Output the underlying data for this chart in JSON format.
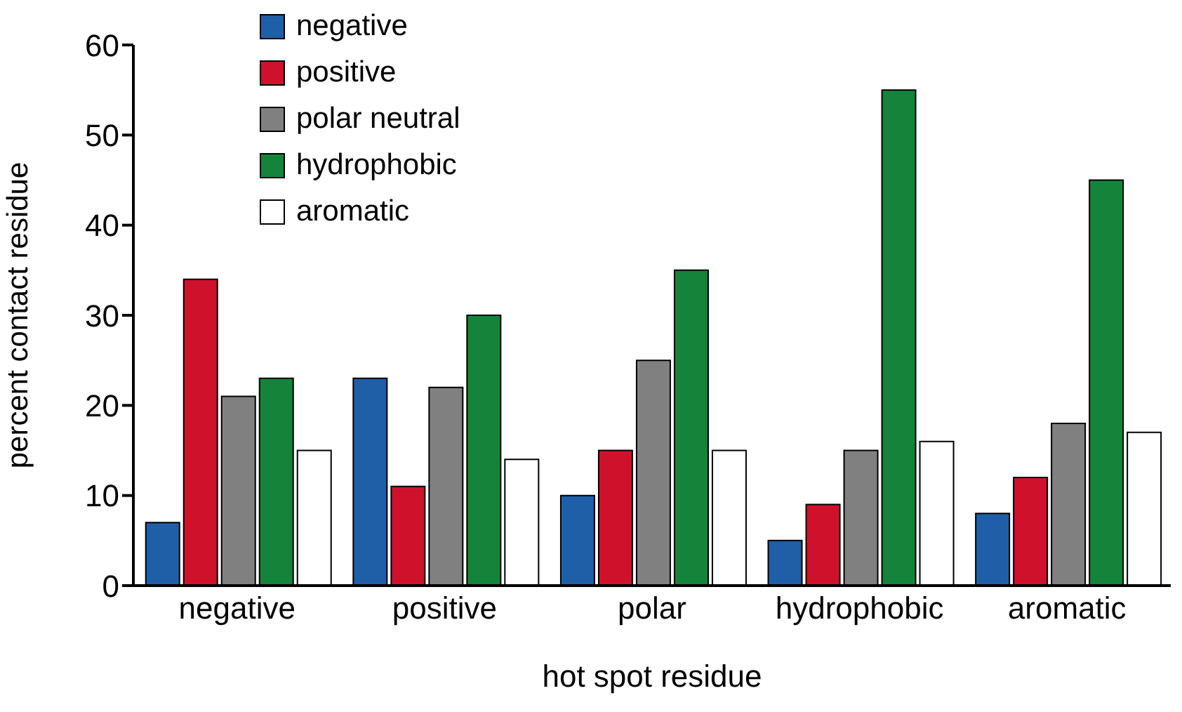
{
  "chart_data": {
    "type": "bar",
    "xlabel": "hot spot residue",
    "ylabel": "percent contact residue",
    "categories": [
      "negative",
      "positive",
      "polar",
      "hydrophobic",
      "aromatic"
    ],
    "series": [
      {
        "name": "negative",
        "color": "#1f5fa8",
        "values": [
          7,
          23,
          10,
          5,
          8
        ]
      },
      {
        "name": "positive",
        "color": "#d0112b",
        "values": [
          34,
          11,
          15,
          9,
          12
        ]
      },
      {
        "name": "polar neutral",
        "color": "#808080",
        "values": [
          21,
          22,
          25,
          15,
          18
        ]
      },
      {
        "name": "hydrophobic",
        "color": "#13843a",
        "values": [
          23,
          30,
          35,
          55,
          45
        ]
      },
      {
        "name": "aromatic",
        "color": "#ffffff",
        "values": [
          15,
          14,
          15,
          16,
          17
        ]
      }
    ],
    "ylim": [
      0,
      60
    ],
    "yticks": [
      0,
      10,
      20,
      30,
      40,
      50,
      60
    ],
    "grid": false,
    "legend": "top left"
  }
}
